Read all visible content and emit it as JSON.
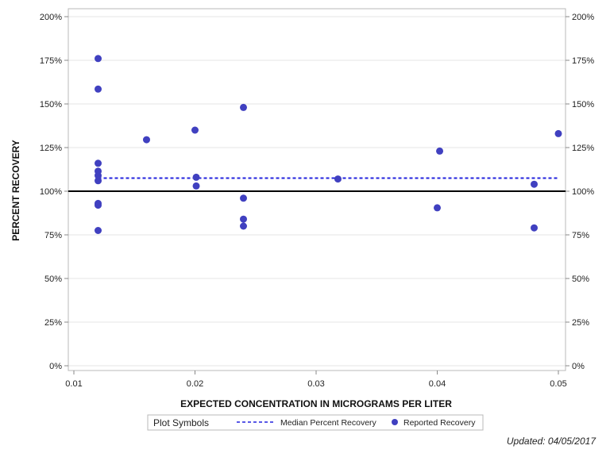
{
  "chart_data": {
    "type": "scatter",
    "xlabel": "EXPECTED CONCENTRATION IN MICROGRAMS PER LITER",
    "ylabel": "PERCENT RECOVERY",
    "xlim": [
      0.01,
      0.05
    ],
    "ylim": [
      0,
      200
    ],
    "x_ticks": [
      "0.01",
      "0.02",
      "0.03",
      "0.04",
      "0.05"
    ],
    "x_tick_values": [
      0.01,
      0.02,
      0.03,
      0.04,
      0.05
    ],
    "y_ticks": [
      "0%",
      "25%",
      "50%",
      "75%",
      "100%",
      "125%",
      "150%",
      "175%",
      "200%"
    ],
    "y_tick_values": [
      0,
      25,
      50,
      75,
      100,
      125,
      150,
      175,
      200
    ],
    "grid": true,
    "reference_line": {
      "y": 100,
      "color": "#000000"
    },
    "median_line": {
      "name": "Median Percent Recovery",
      "y": 107.5,
      "x_range": [
        0.012,
        0.05
      ],
      "color": "#2222dd"
    },
    "series": [
      {
        "name": "Reported Recovery",
        "color": "#4040c0",
        "points": [
          {
            "x": 0.012,
            "y": 176
          },
          {
            "x": 0.012,
            "y": 158.5
          },
          {
            "x": 0.012,
            "y": 116
          },
          {
            "x": 0.012,
            "y": 111.5
          },
          {
            "x": 0.012,
            "y": 109
          },
          {
            "x": 0.012,
            "y": 106
          },
          {
            "x": 0.012,
            "y": 93
          },
          {
            "x": 0.012,
            "y": 92
          },
          {
            "x": 0.012,
            "y": 77.5
          },
          {
            "x": 0.016,
            "y": 129.5
          },
          {
            "x": 0.02,
            "y": 135
          },
          {
            "x": 0.0201,
            "y": 108
          },
          {
            "x": 0.0201,
            "y": 103
          },
          {
            "x": 0.024,
            "y": 148
          },
          {
            "x": 0.024,
            "y": 96
          },
          {
            "x": 0.024,
            "y": 84
          },
          {
            "x": 0.024,
            "y": 80
          },
          {
            "x": 0.0318,
            "y": 107
          },
          {
            "x": 0.04,
            "y": 90.5
          },
          {
            "x": 0.0402,
            "y": 123
          },
          {
            "x": 0.048,
            "y": 104
          },
          {
            "x": 0.048,
            "y": 79
          },
          {
            "x": 0.05,
            "y": 133
          }
        ]
      }
    ],
    "legend": {
      "title": "Plot Symbols",
      "items": [
        "Median Percent Recovery",
        "Reported Recovery"
      ],
      "placement": "bottom-center"
    }
  },
  "footnote": "Updated: 04/05/2017"
}
